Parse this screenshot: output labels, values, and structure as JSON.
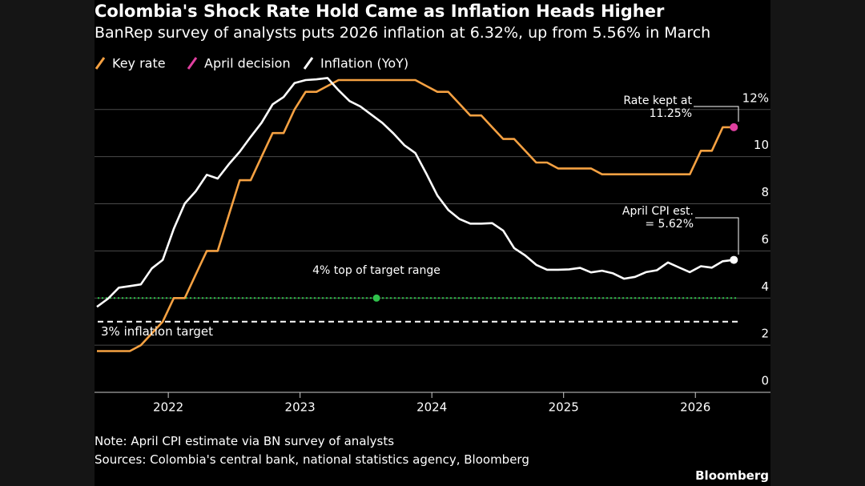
{
  "chart_data": {
    "type": "line",
    "title": "Colombia's Shock Rate Hold Came as Inflation Heads Higher",
    "subtitle": "BanRep survey of analysts puts 2026 inflation at 6.32%, up from 5.56% in March",
    "x": [
      2021.458,
      2021.542,
      2021.625,
      2021.708,
      2021.792,
      2021.875,
      2021.958,
      2022.042,
      2022.125,
      2022.208,
      2022.292,
      2022.375,
      2022.458,
      2022.542,
      2022.625,
      2022.708,
      2022.792,
      2022.875,
      2022.958,
      2023.042,
      2023.125,
      2023.208,
      2023.292,
      2023.375,
      2023.458,
      2023.542,
      2023.625,
      2023.708,
      2023.792,
      2023.875,
      2023.958,
      2024.042,
      2024.125,
      2024.208,
      2024.292,
      2024.375,
      2024.458,
      2024.542,
      2024.625,
      2024.708,
      2024.792,
      2024.875,
      2024.958,
      2025.042,
      2025.125,
      2025.208,
      2025.292,
      2025.375,
      2025.458,
      2025.542,
      2025.625,
      2025.708,
      2025.792,
      2025.875,
      2025.958,
      2026.042,
      2026.125,
      2026.208,
      2026.292
    ],
    "series": [
      {
        "name": "Key rate",
        "color": "#f5a142",
        "values": [
          1.75,
          1.75,
          1.75,
          1.75,
          2.0,
          2.5,
          3.0,
          4.0,
          4.0,
          5.0,
          6.0,
          6.0,
          7.5,
          9.0,
          9.0,
          10.0,
          11.0,
          11.0,
          12.0,
          12.75,
          12.75,
          13.0,
          13.25,
          13.25,
          13.25,
          13.25,
          13.25,
          13.25,
          13.25,
          13.25,
          13.0,
          12.75,
          12.75,
          12.25,
          11.75,
          11.75,
          11.25,
          10.75,
          10.75,
          10.25,
          9.75,
          9.75,
          9.5,
          9.5,
          9.5,
          9.5,
          9.25,
          9.25,
          9.25,
          9.25,
          9.25,
          9.25,
          9.25,
          9.25,
          9.25,
          10.25,
          10.25,
          11.25,
          11.25
        ]
      },
      {
        "name": "April decision",
        "color": "#e040a0",
        "x": [
          2026.292
        ],
        "values": [
          11.25
        ]
      },
      {
        "name": "Inflation (YoY)",
        "color": "#ffffff",
        "values": [
          3.63,
          3.97,
          4.44,
          4.51,
          4.58,
          5.26,
          5.62,
          6.94,
          8.01,
          8.53,
          9.23,
          9.07,
          9.67,
          10.21,
          10.84,
          11.44,
          12.22,
          12.53,
          13.12,
          13.25,
          13.28,
          13.34,
          12.82,
          12.36,
          12.13,
          11.78,
          11.43,
          10.99,
          10.48,
          10.15,
          9.28,
          8.35,
          7.74,
          7.36,
          7.16,
          7.16,
          7.18,
          6.86,
          6.12,
          5.81,
          5.41,
          5.2,
          5.2,
          5.22,
          5.28,
          5.09,
          5.16,
          5.05,
          4.82,
          4.9,
          5.1,
          5.18,
          5.51,
          5.3,
          5.1,
          5.35,
          5.29,
          5.56,
          5.62
        ]
      }
    ],
    "xlim": [
      2021.44,
      2026.57
    ],
    "xticks": [
      2022,
      2023,
      2024,
      2025,
      2026
    ],
    "ylim": [
      0,
      13.25
    ],
    "yticks": [
      0,
      2,
      4,
      6,
      8,
      10,
      {
        "value": 12,
        "label": "12%"
      }
    ],
    "grid": true,
    "reference_lines": [
      {
        "value": 4,
        "label": "4% top of target range",
        "color": "#2fc24b",
        "style": "dotted",
        "marker_x": 2023.58
      },
      {
        "value": 3,
        "label": "3% inflation target",
        "color": "#ffffff",
        "style": "dashed"
      }
    ],
    "annotations": [
      "Rate kept at 11.25%",
      "April CPI est. = 5.62%"
    ],
    "notes": [
      "Note: April CPI estimate via BN survey of analysts",
      "Sources: Colombia's central bank, national statistics agency, Bloomberg"
    ],
    "source_brand": "Bloomberg"
  }
}
